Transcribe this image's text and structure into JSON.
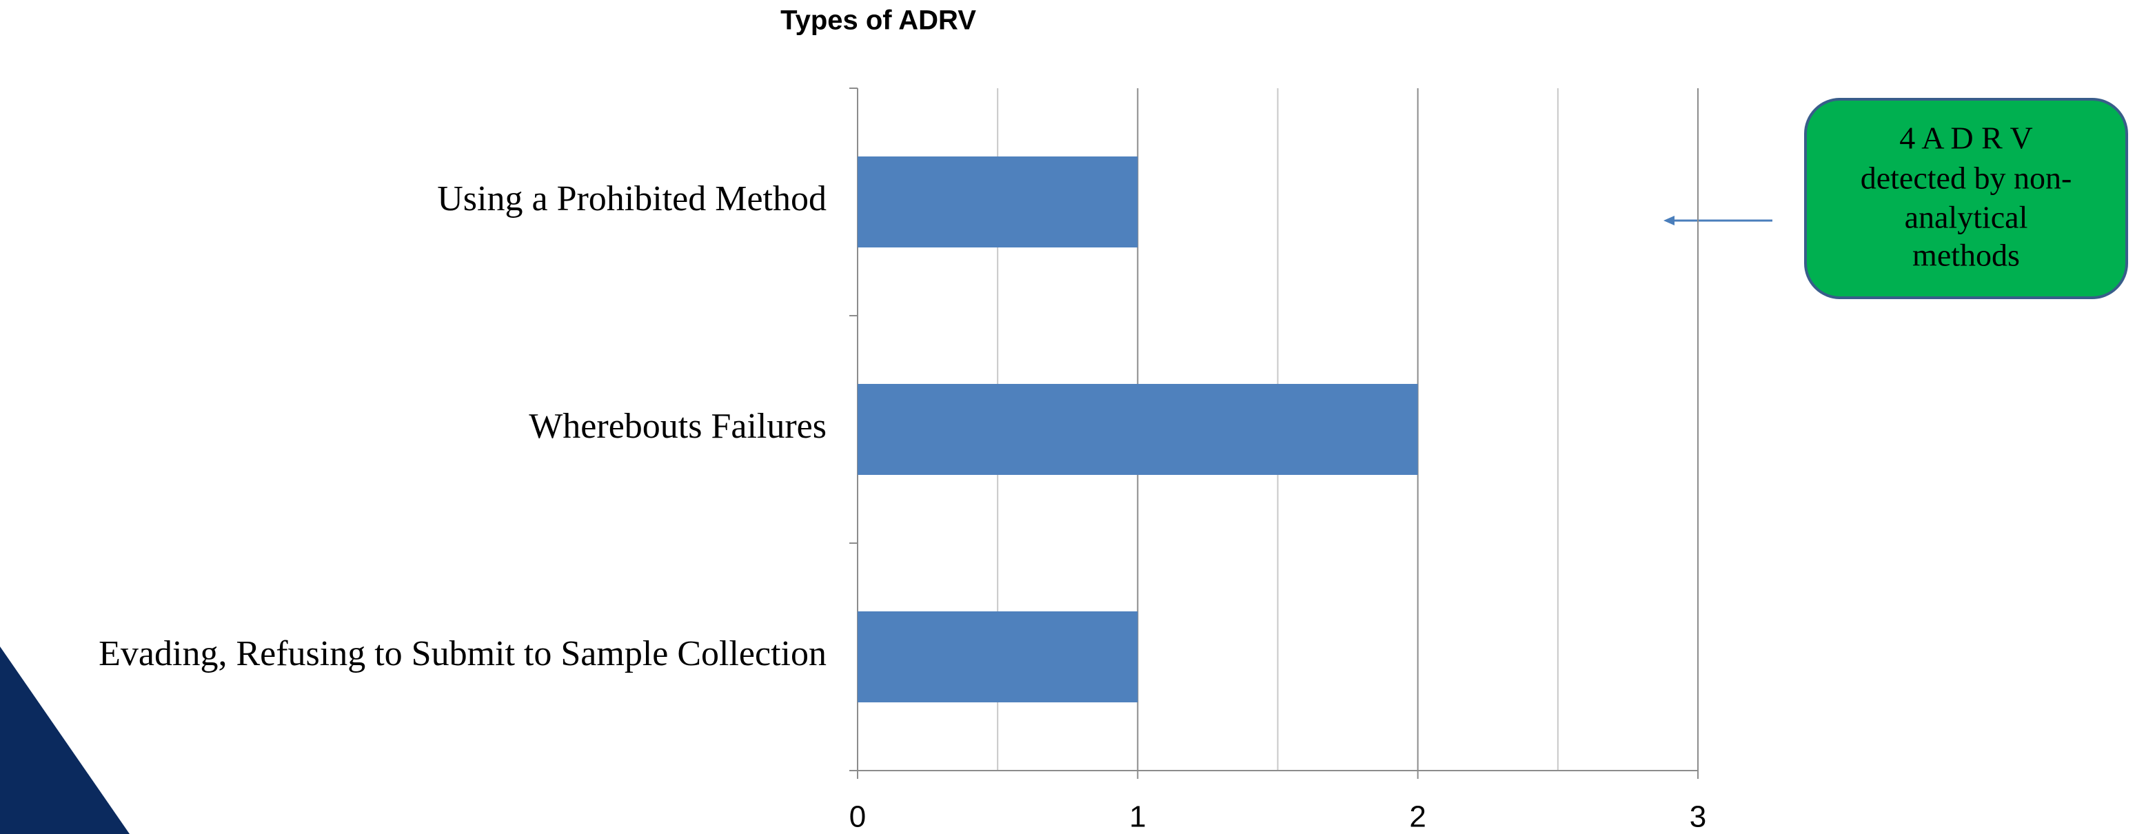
{
  "chart_data": {
    "type": "bar",
    "orientation": "horizontal",
    "title": "Types of ADRV",
    "categories": [
      "Using a Prohibited Method",
      "Wherebouts Failures",
      "Evading, Refusing to Submit to Sample Collection"
    ],
    "values": [
      1,
      2,
      1
    ],
    "color": "#4f81bd",
    "xlim": [
      0,
      3
    ],
    "xticks": [
      0,
      1,
      2,
      3
    ],
    "minor_xticks": [
      0.5,
      1.5,
      2.5
    ],
    "grid": true,
    "annotation": {
      "lines": [
        "4 A D R V",
        "detected by non-",
        "analytical",
        "methods"
      ],
      "color": "#00b050"
    }
  }
}
